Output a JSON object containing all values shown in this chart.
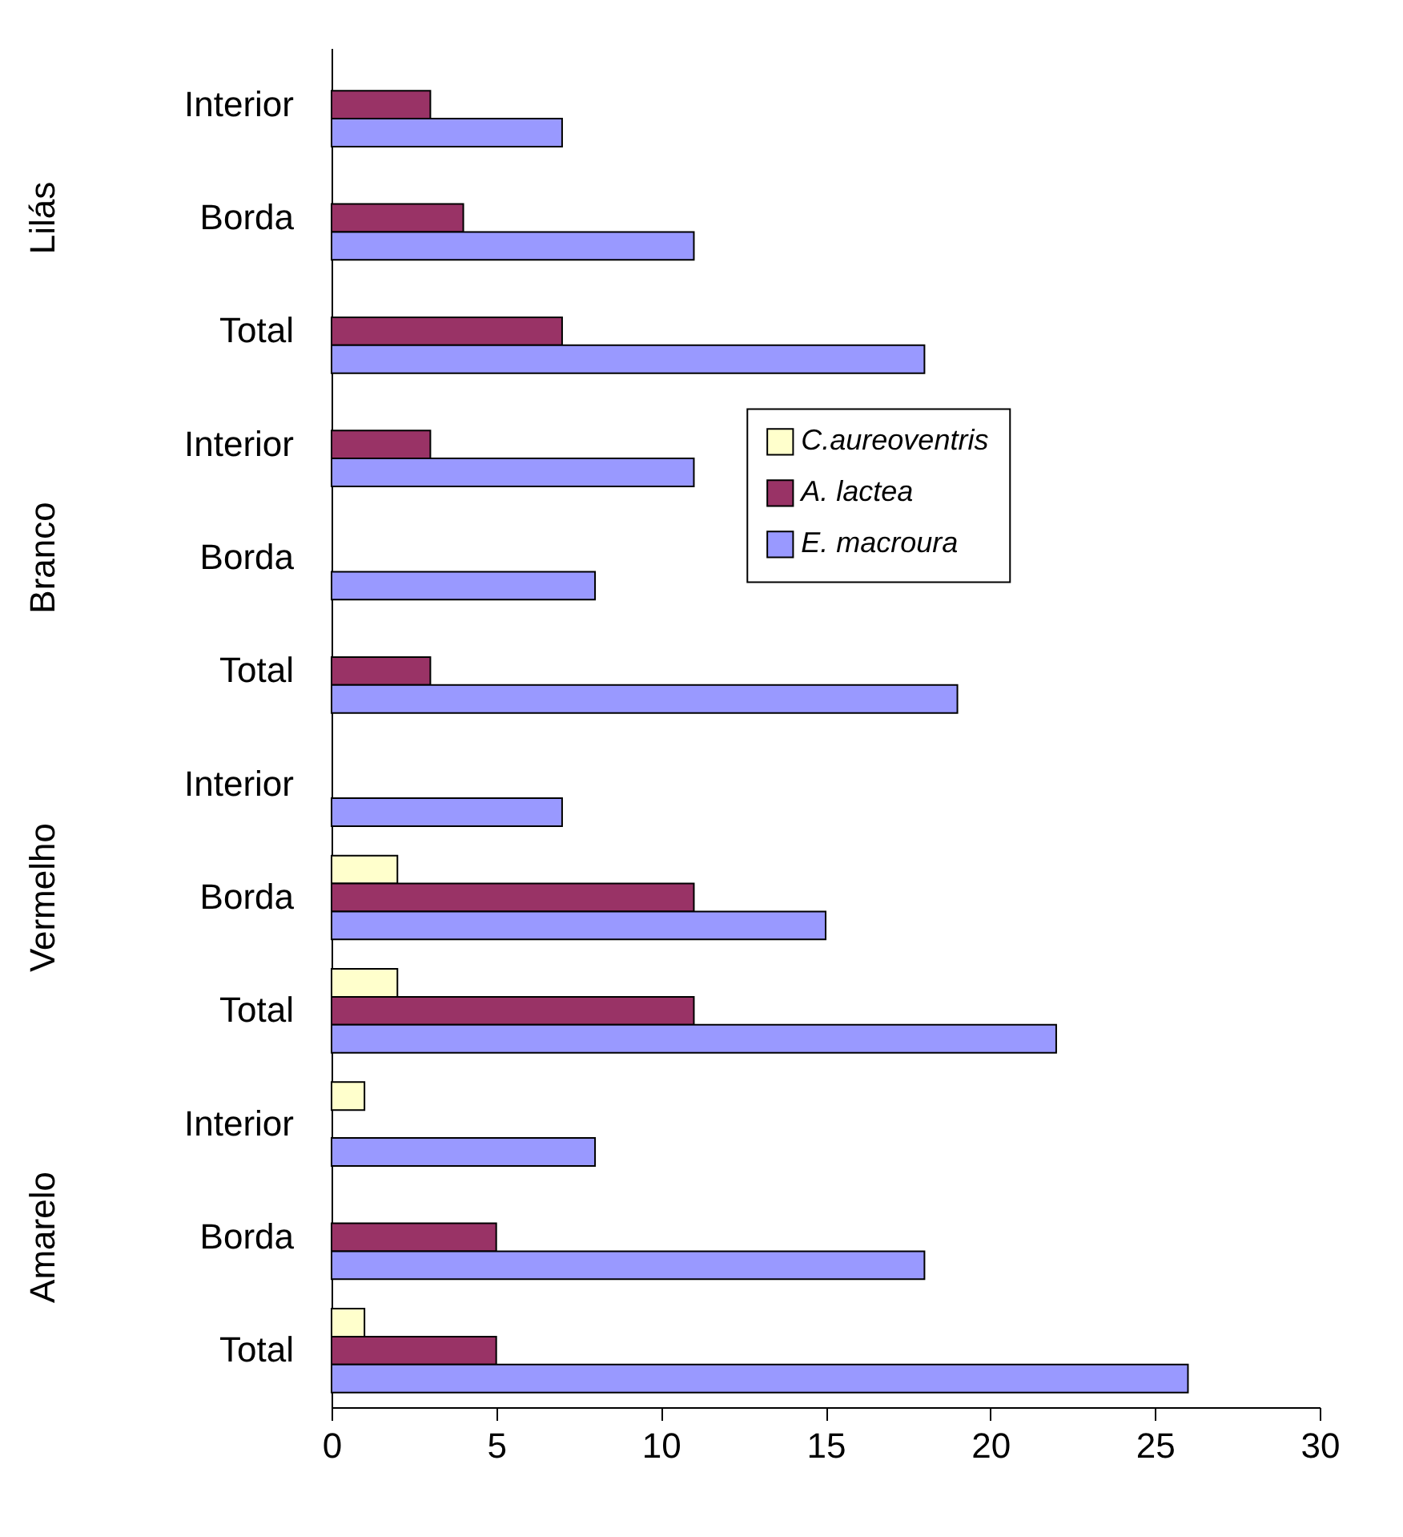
{
  "chart_data": {
    "type": "bar",
    "orientation": "horizontal",
    "categories": [
      "Interior",
      "Borda",
      "Total",
      "Interior",
      "Borda",
      "Total",
      "Interior",
      "Borda",
      "Total",
      "Interior",
      "Borda",
      "Total"
    ],
    "series": [
      {
        "name": "C.aureoventris",
        "color": "#ffffcc",
        "values": [
          null,
          null,
          null,
          null,
          null,
          null,
          null,
          2,
          2,
          1,
          null,
          1
        ]
      },
      {
        "name": "A. lactea",
        "color": "#993366",
        "values": [
          3,
          4,
          7,
          3,
          null,
          3,
          null,
          11,
          11,
          null,
          5,
          5
        ]
      },
      {
        "name": "E. macroura",
        "color": "#9999ff",
        "values": [
          7,
          11,
          18,
          11,
          8,
          19,
          7,
          15,
          22,
          8,
          18,
          26
        ]
      }
    ],
    "xlim": [
      0,
      30
    ],
    "xticks": [
      0,
      5,
      10,
      15,
      20,
      25,
      30
    ],
    "grid": false,
    "legend": "top right",
    "annotations": [
      "Lilás",
      "Branco",
      "Vermelho",
      "Amarelo"
    ]
  }
}
